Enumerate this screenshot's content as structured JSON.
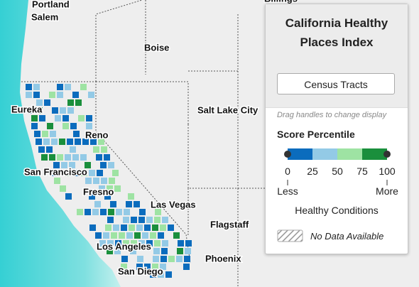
{
  "map": {
    "labels": [
      "Portland",
      "Salem",
      "Billings",
      "Boise",
      "Eureka",
      "Reno",
      "Salt Lake City",
      "San Francisco",
      "Fresno",
      "Las Vegas",
      "Flagstaff",
      "Los Angeles",
      "Phoenix",
      "San Diego"
    ]
  },
  "legend": {
    "title": "California Healthy Places Index",
    "button": "Census Tracts",
    "hint": "Drag handles to change display",
    "scale_title": "Score Percentile",
    "ticks": [
      0,
      25,
      50,
      75,
      100
    ],
    "colors": [
      "#0b6cbd",
      "#93cae6",
      "#9ee3a3",
      "#1a8f3c"
    ],
    "low": "Less",
    "high": "More",
    "caption": "Healthy Conditions",
    "no_data": "No Data Available"
  }
}
